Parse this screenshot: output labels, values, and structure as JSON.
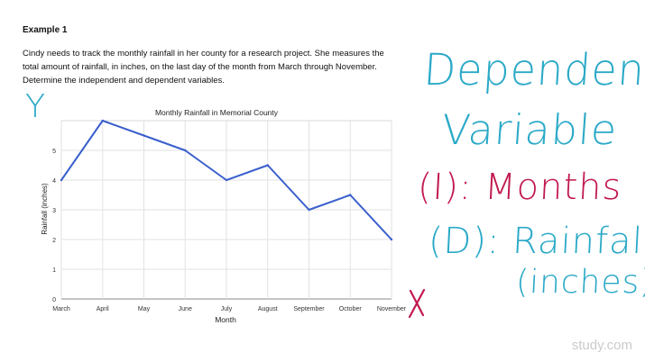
{
  "text": {
    "example_title": "Example 1",
    "problem": "Cindy needs to track the monthly rainfall in her county for a research project. She measures the total amount of rainfall, in inches, on the last day of the month from March through November. Determine the independent and dependent variables."
  },
  "annotations": {
    "y_axis_mark": "Y",
    "x_axis_mark": "X",
    "heading_line1": "Dependent",
    "heading_line2": "Variable",
    "independent": "(I): Months",
    "dependent": "(D): Rainfall",
    "dependent_unit": "(inches)"
  },
  "watermark": "study.com",
  "colors": {
    "line": "#3a5fcd",
    "handwriting_blue": "#2aa9c7",
    "handwriting_red": "#c1194e"
  },
  "chart_data": {
    "type": "line",
    "title": "Monthly Rainfall in Memorial County",
    "xlabel": "Month",
    "ylabel": "Rainfall (inches)",
    "categories": [
      "March",
      "April",
      "May",
      "June",
      "July",
      "August",
      "September",
      "October",
      "November"
    ],
    "values": [
      4,
      6,
      5.5,
      5,
      4,
      4.5,
      3,
      3.5,
      2
    ],
    "ylim": [
      0,
      6
    ],
    "yticks": [
      0,
      1,
      2,
      3,
      4,
      5
    ],
    "grid": true
  }
}
